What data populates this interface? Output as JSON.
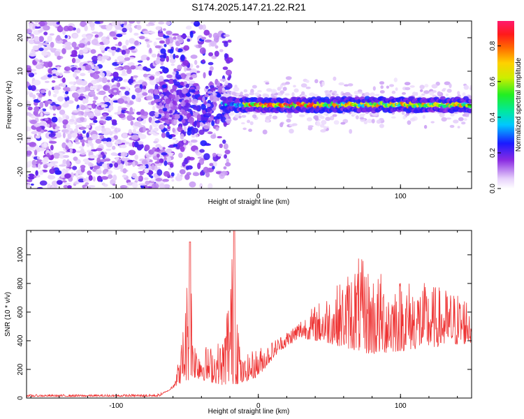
{
  "title": "S174.2025.147.21.22.R21",
  "chart_data": [
    {
      "type": "heatmap",
      "xlabel": "Height of straight line (km)",
      "ylabel": "Frequency (Hz)",
      "xlim": [
        -163,
        150
      ],
      "ylim": [
        -25,
        25
      ],
      "x_ticks": [
        -100,
        0,
        100
      ],
      "y_ticks": [
        -20,
        -10,
        0,
        10,
        20
      ],
      "colorbar": {
        "label": "Normalized spectral amplitude",
        "range": [
          0,
          0.94
        ],
        "ticks": [
          0.0,
          0.2,
          0.4,
          0.6,
          0.8
        ]
      },
      "ridge_frequency_hz": 0,
      "ridge_start_km": -25,
      "noise_region_km": [
        -163,
        -25
      ],
      "peak_amplitude": 0.94
    },
    {
      "type": "line",
      "xlabel": "Height of straight line (km)",
      "ylabel": "SNR (10 * v/v)",
      "xlim": [
        -163,
        150
      ],
      "ylim": [
        0,
        1170
      ],
      "x_ticks": [
        -100,
        0,
        100
      ],
      "y_ticks": [
        0,
        200,
        400,
        600,
        800,
        1000
      ],
      "line_color": "#ee3333",
      "envelope": [
        {
          "x": -163,
          "y": 25
        },
        {
          "x": -100,
          "y": 25
        },
        {
          "x": -70,
          "y": 30
        },
        {
          "x": -62,
          "y": 60
        },
        {
          "x": -55,
          "y": 300
        },
        {
          "x": -48,
          "y": 1090
        },
        {
          "x": -45,
          "y": 420
        },
        {
          "x": -35,
          "y": 360
        },
        {
          "x": -25,
          "y": 420
        },
        {
          "x": -17,
          "y": 1170
        },
        {
          "x": -12,
          "y": 260
        },
        {
          "x": -5,
          "y": 330
        },
        {
          "x": 10,
          "y": 400
        },
        {
          "x": 20,
          "y": 470
        },
        {
          "x": 30,
          "y": 560
        },
        {
          "x": 45,
          "y": 700
        },
        {
          "x": 60,
          "y": 840
        },
        {
          "x": 70,
          "y": 1000
        },
        {
          "x": 80,
          "y": 900
        },
        {
          "x": 100,
          "y": 850
        },
        {
          "x": 120,
          "y": 800
        },
        {
          "x": 150,
          "y": 720
        }
      ],
      "baseline": [
        {
          "x": -163,
          "y": 10
        },
        {
          "x": -70,
          "y": 10
        },
        {
          "x": -55,
          "y": 100
        },
        {
          "x": -45,
          "y": 140
        },
        {
          "x": -25,
          "y": 90
        },
        {
          "x": -12,
          "y": 100
        },
        {
          "x": 0,
          "y": 150
        },
        {
          "x": 15,
          "y": 330
        },
        {
          "x": 30,
          "y": 420
        },
        {
          "x": 50,
          "y": 380
        },
        {
          "x": 80,
          "y": 300
        },
        {
          "x": 110,
          "y": 340
        },
        {
          "x": 150,
          "y": 380
        }
      ]
    }
  ]
}
